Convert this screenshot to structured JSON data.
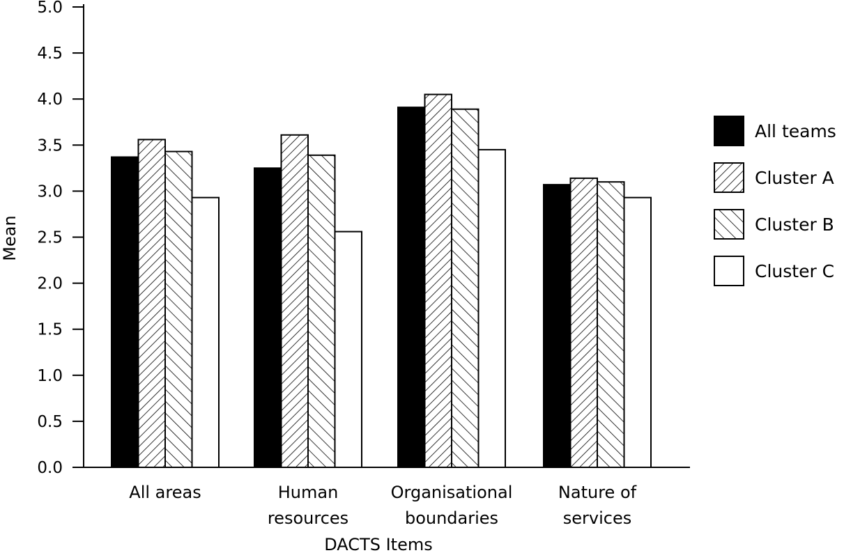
{
  "chart_data": {
    "type": "bar",
    "title": "",
    "xlabel": "DACTS Items",
    "ylabel": "Mean",
    "ylim": [
      0,
      5
    ],
    "yticks": [
      "0.0",
      "0.5",
      "1.0",
      "1.5",
      "2.0",
      "2.5",
      "3.0",
      "3.5",
      "4.0",
      "4.5",
      "5.0"
    ],
    "categories": [
      [
        "All areas"
      ],
      [
        "Human",
        "resources"
      ],
      [
        "Organisational",
        "boundaries"
      ],
      [
        "Nature of",
        "services"
      ]
    ],
    "series": [
      {
        "name": "All teams",
        "values": [
          3.37,
          3.25,
          3.91,
          3.07
        ],
        "fill": "solid",
        "color": "#000000"
      },
      {
        "name": "Cluster A",
        "values": [
          3.56,
          3.61,
          4.05,
          3.14
        ],
        "fill": "hatch-back",
        "color": "#000000"
      },
      {
        "name": "Cluster B",
        "values": [
          3.43,
          3.39,
          3.89,
          3.1
        ],
        "fill": "hatch-forward",
        "color": "#000000"
      },
      {
        "name": "Cluster C",
        "values": [
          2.93,
          2.56,
          3.45,
          2.93
        ],
        "fill": "empty",
        "color": "#ffffff"
      }
    ],
    "grid": false,
    "legend_position": "right"
  }
}
